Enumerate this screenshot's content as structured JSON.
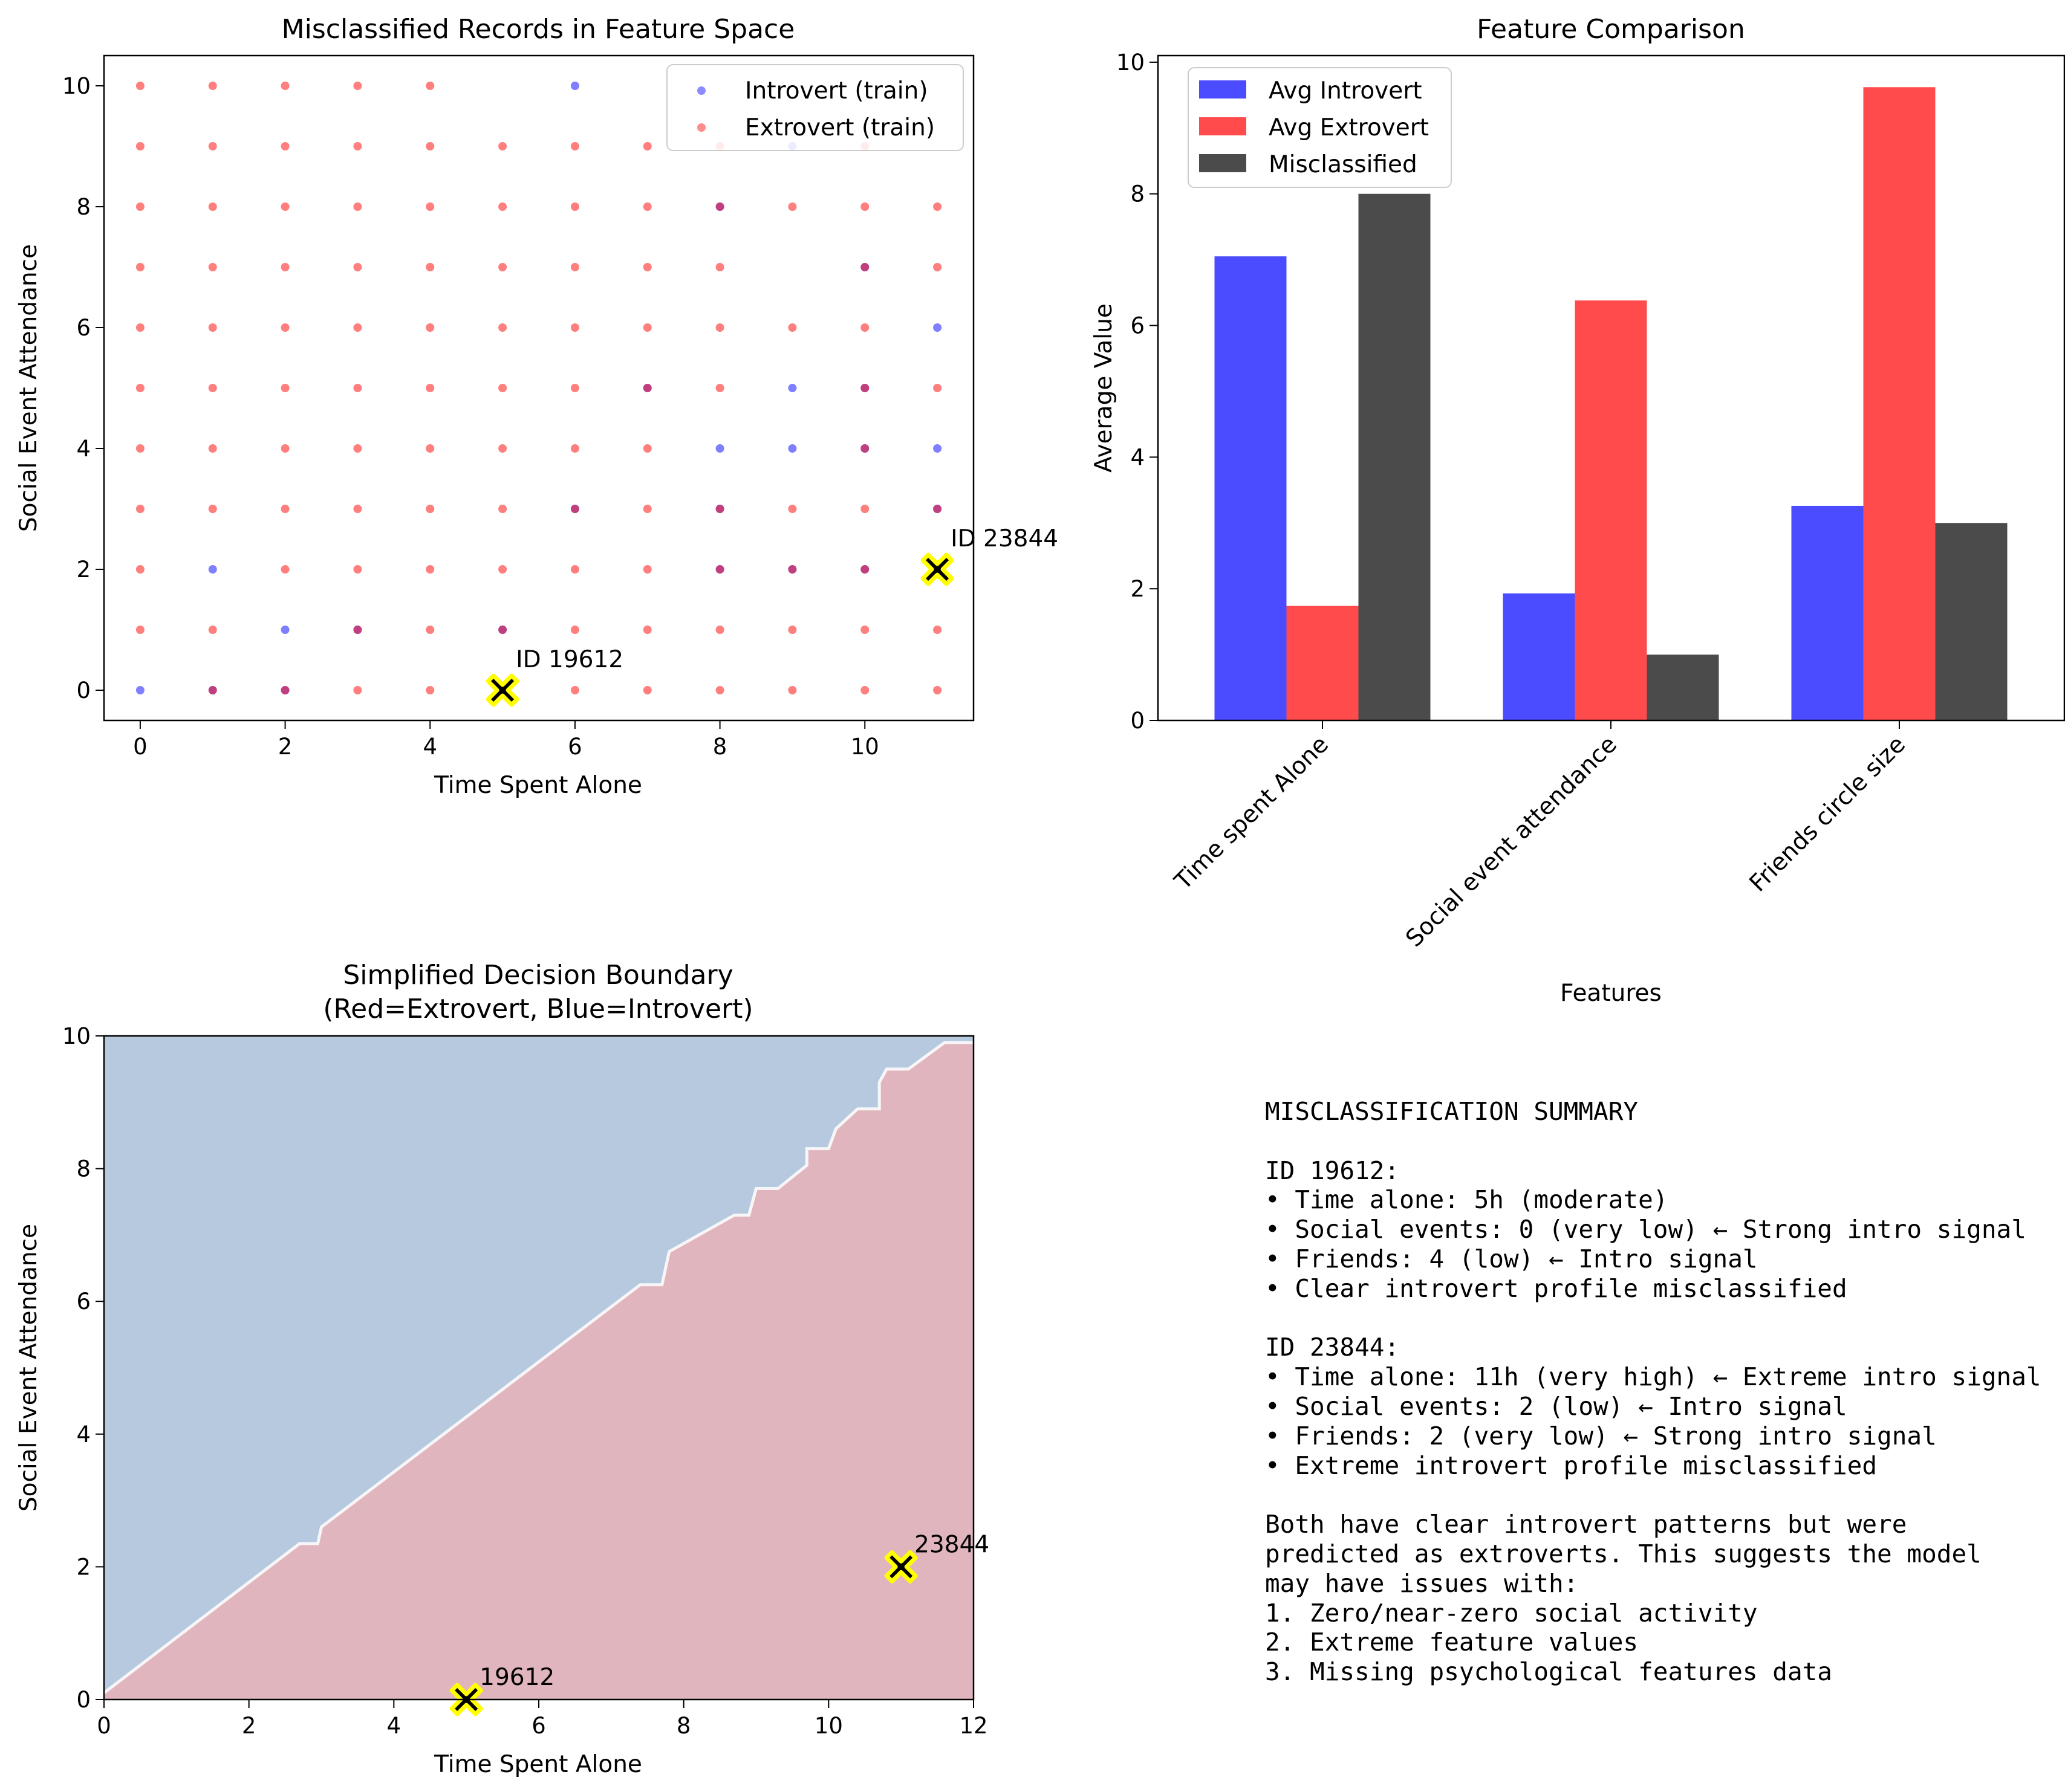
{
  "chart_data": [
    {
      "type": "scatter",
      "title": "Misclassified Records in Feature Space",
      "xlabel": "Time Spent Alone",
      "ylabel": "Social Event Attendance",
      "xlim": [
        -0.5,
        11.5
      ],
      "ylim": [
        -0.5,
        10.5
      ],
      "xticks": [
        0,
        2,
        4,
        6,
        8,
        10
      ],
      "yticks": [
        0,
        2,
        4,
        6,
        8,
        10
      ],
      "legend_position": "upper right",
      "series": [
        {
          "name": "Introvert (train)",
          "color": "#0000ff",
          "points": [
            [
              0,
              0
            ],
            [
              2,
              1
            ],
            [
              1,
              2
            ],
            [
              6,
              10
            ],
            [
              9,
              9
            ],
            [
              11,
              6
            ],
            [
              10,
              5
            ],
            [
              9,
              5
            ],
            [
              9,
              4
            ],
            [
              11,
              4
            ],
            [
              8,
              4
            ],
            [
              10,
              4
            ],
            [
              7,
              5
            ],
            [
              8,
              8
            ],
            [
              1,
              0
            ],
            [
              2,
              0
            ],
            [
              3,
              1
            ],
            [
              11,
              3
            ],
            [
              10,
              7
            ],
            [
              8,
              3
            ],
            [
              8,
              2
            ],
            [
              9,
              2
            ],
            [
              10,
              2
            ],
            [
              11,
              2
            ],
            [
              6,
              3
            ],
            [
              5,
              1
            ]
          ]
        },
        {
          "name": "Extrovert (train)",
          "color": "#ff0000",
          "points": [
            [
              0,
              10
            ],
            [
              1,
              10
            ],
            [
              2,
              10
            ],
            [
              3,
              10
            ],
            [
              4,
              10
            ],
            [
              0,
              9
            ],
            [
              1,
              9
            ],
            [
              2,
              9
            ],
            [
              3,
              9
            ],
            [
              4,
              9
            ],
            [
              5,
              9
            ],
            [
              6,
              9
            ],
            [
              7,
              9
            ],
            [
              8,
              9
            ],
            [
              10,
              9
            ],
            [
              0,
              8
            ],
            [
              1,
              8
            ],
            [
              2,
              8
            ],
            [
              3,
              8
            ],
            [
              4,
              8
            ],
            [
              5,
              8
            ],
            [
              6,
              8
            ],
            [
              7,
              8
            ],
            [
              8,
              8
            ],
            [
              9,
              8
            ],
            [
              10,
              8
            ],
            [
              11,
              8
            ],
            [
              0,
              7
            ],
            [
              1,
              7
            ],
            [
              2,
              7
            ],
            [
              3,
              7
            ],
            [
              4,
              7
            ],
            [
              5,
              7
            ],
            [
              6,
              7
            ],
            [
              7,
              7
            ],
            [
              8,
              7
            ],
            [
              10,
              7
            ],
            [
              11,
              7
            ],
            [
              0,
              6
            ],
            [
              1,
              6
            ],
            [
              2,
              6
            ],
            [
              3,
              6
            ],
            [
              4,
              6
            ],
            [
              5,
              6
            ],
            [
              6,
              6
            ],
            [
              7,
              6
            ],
            [
              8,
              6
            ],
            [
              9,
              6
            ],
            [
              10,
              6
            ],
            [
              0,
              5
            ],
            [
              1,
              5
            ],
            [
              2,
              5
            ],
            [
              3,
              5
            ],
            [
              4,
              5
            ],
            [
              5,
              5
            ],
            [
              6,
              5
            ],
            [
              7,
              5
            ],
            [
              8,
              5
            ],
            [
              10,
              5
            ],
            [
              11,
              5
            ],
            [
              0,
              4
            ],
            [
              1,
              4
            ],
            [
              2,
              4
            ],
            [
              3,
              4
            ],
            [
              4,
              4
            ],
            [
              5,
              4
            ],
            [
              6,
              4
            ],
            [
              7,
              4
            ],
            [
              10,
              4
            ],
            [
              0,
              3
            ],
            [
              1,
              3
            ],
            [
              2,
              3
            ],
            [
              3,
              3
            ],
            [
              4,
              3
            ],
            [
              5,
              3
            ],
            [
              6,
              3
            ],
            [
              7,
              3
            ],
            [
              8,
              3
            ],
            [
              9,
              3
            ],
            [
              10,
              3
            ],
            [
              11,
              3
            ],
            [
              0,
              2
            ],
            [
              2,
              2
            ],
            [
              3,
              2
            ],
            [
              4,
              2
            ],
            [
              5,
              2
            ],
            [
              6,
              2
            ],
            [
              7,
              2
            ],
            [
              8,
              2
            ],
            [
              9,
              2
            ],
            [
              10,
              2
            ],
            [
              11,
              2
            ],
            [
              0,
              1
            ],
            [
              1,
              1
            ],
            [
              3,
              1
            ],
            [
              4,
              1
            ],
            [
              5,
              1
            ],
            [
              6,
              1
            ],
            [
              7,
              1
            ],
            [
              8,
              1
            ],
            [
              9,
              1
            ],
            [
              10,
              1
            ],
            [
              11,
              1
            ],
            [
              1,
              0
            ],
            [
              2,
              0
            ],
            [
              3,
              0
            ],
            [
              4,
              0
            ],
            [
              5,
              0
            ],
            [
              6,
              0
            ],
            [
              7,
              0
            ],
            [
              8,
              0
            ],
            [
              9,
              0
            ],
            [
              10,
              0
            ],
            [
              11,
              0
            ]
          ]
        }
      ],
      "highlights": [
        {
          "label": "ID 19612",
          "x": 5,
          "y": 0
        },
        {
          "label": "ID 23844",
          "x": 11,
          "y": 2
        }
      ],
      "highlight_color": "#000000",
      "highlight_edge_color": "#ffff00"
    },
    {
      "type": "bar",
      "title": "Feature Comparison",
      "xlabel": "Features",
      "ylabel": "Average Value",
      "categories": [
        "Time spent Alone",
        "Social event attendance",
        "Friends circle size"
      ],
      "ylim": [
        0,
        10.1
      ],
      "yticks": [
        0,
        2,
        4,
        6,
        8,
        10
      ],
      "legend_position": "upper left",
      "series": [
        {
          "name": "Avg Introvert",
          "color": "#4b4bff",
          "values": [
            7.05,
            1.93,
            3.26
          ]
        },
        {
          "name": "Avg Extrovert",
          "color": "#ff4b4b",
          "values": [
            1.74,
            6.38,
            9.62
          ]
        },
        {
          "name": "Misclassified",
          "color": "#4b4b4b",
          "values": [
            8,
            1,
            3
          ]
        }
      ]
    },
    {
      "type": "area",
      "title": "Simplified Decision Boundary",
      "subtitle": "(Red=Extrovert, Blue=Introvert)",
      "xlabel": "Time Spent Alone",
      "ylabel": "Social Event Attendance",
      "xlim": [
        0,
        12
      ],
      "ylim": [
        0,
        10
      ],
      "xticks": [
        0,
        2,
        4,
        6,
        8,
        10,
        12
      ],
      "yticks": [
        0,
        2,
        4,
        6,
        8,
        10
      ],
      "boundary": [
        [
          0,
          0.1
        ],
        [
          2.7,
          2.35
        ],
        [
          2.95,
          2.35
        ],
        [
          3,
          2.6
        ],
        [
          7.4,
          6.25
        ],
        [
          7.7,
          6.25
        ],
        [
          7.8,
          6.75
        ],
        [
          8.7,
          7.3
        ],
        [
          8.9,
          7.3
        ],
        [
          9.0,
          7.7
        ],
        [
          9.3,
          7.7
        ],
        [
          9.7,
          8.05
        ],
        [
          9.7,
          8.3
        ],
        [
          10.0,
          8.3
        ],
        [
          10.1,
          8.6
        ],
        [
          10.4,
          8.9
        ],
        [
          10.7,
          8.9
        ],
        [
          10.7,
          9.3
        ],
        [
          10.8,
          9.5
        ],
        [
          11.1,
          9.5
        ],
        [
          11.6,
          9.9
        ],
        [
          12,
          9.9
        ]
      ],
      "regions": [
        {
          "label": "Introvert",
          "color": "#b6c9df"
        },
        {
          "label": "Extrovert",
          "color": "#e0b5bd"
        }
      ],
      "points": [
        {
          "label": "19612",
          "x": 5,
          "y": 0
        },
        {
          "label": "23844",
          "x": 11,
          "y": 2
        }
      ]
    }
  ],
  "summary": {
    "title": "MISCLASSIFICATION SUMMARY",
    "id1_header": "ID 19612:",
    "id1_items": [
      "• Time alone: 5h (moderate)",
      "• Social events: 0 (very low) ← Strong intro signal",
      "• Friends: 4 (low) ← Intro signal",
      "• Clear introvert profile misclassified"
    ],
    "id2_header": "ID 23844:",
    "id2_items": [
      "• Time alone: 11h (very high) ← Extreme intro signal",
      "• Social events: 2 (low) ← Intro signal",
      "• Friends: 2 (very low) ← Strong intro signal",
      "• Extreme introvert profile misclassified"
    ],
    "conclusion": [
      "Both have clear introvert patterns but were",
      "predicted as extroverts. This suggests the model",
      "may have issues with:",
      "1. Zero/near-zero social activity",
      "2. Extreme feature values",
      "3. Missing psychological features data"
    ]
  }
}
